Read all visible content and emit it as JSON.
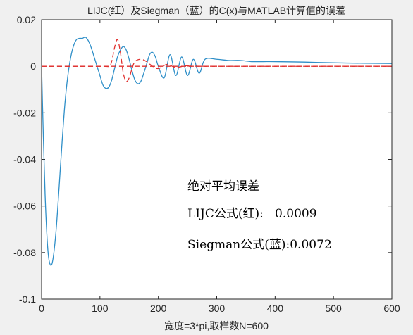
{
  "chart_data": {
    "type": "line",
    "title": "LIJC(红）及Siegman（蓝）的C(x)与MATLAB计算值的误差",
    "xlabel": "宽度=3*pi,取样数N=600",
    "ylabel": "",
    "xlim": [
      0,
      600
    ],
    "ylim": [
      -0.1,
      0.02
    ],
    "xticks": [
      0,
      100,
      200,
      300,
      400,
      500,
      600
    ],
    "yticks": [
      -0.1,
      -0.08,
      -0.06,
      -0.04,
      -0.02,
      0,
      0.02
    ],
    "xtick_labels": [
      "0",
      "100",
      "200",
      "300",
      "400",
      "500",
      "600"
    ],
    "ytick_labels": [
      "-0.1",
      "-0.08",
      "-0.06",
      "-0.04",
      "-0.02",
      "0",
      "0.02"
    ],
    "grid": false,
    "series": [
      {
        "name": "Siegman",
        "style": "solid",
        "color": "#2f8fc8",
        "x": [
          0,
          3,
          6,
          9,
          12,
          16,
          20,
          25,
          30,
          35,
          40,
          45,
          50,
          55,
          60,
          65,
          70,
          75,
          80,
          85,
          90,
          95,
          100,
          105,
          110,
          115,
          120,
          125,
          130,
          135,
          140,
          145,
          150,
          155,
          160,
          165,
          170,
          175,
          180,
          185,
          190,
          195,
          200,
          210,
          220,
          230,
          240,
          250,
          260,
          270,
          280,
          300,
          320,
          340,
          360,
          380,
          400,
          450,
          500,
          550,
          600
        ],
        "y": [
          0,
          -0.03,
          -0.055,
          -0.072,
          -0.082,
          -0.0855,
          -0.082,
          -0.07,
          -0.052,
          -0.033,
          -0.016,
          -0.004,
          0.004,
          0.009,
          0.0115,
          0.012,
          0.012,
          0.0125,
          0.011,
          0.008,
          0.004,
          0.0,
          -0.004,
          -0.008,
          -0.0095,
          -0.009,
          -0.006,
          -0.001,
          0.004,
          0.007,
          0.0085,
          0.007,
          0.003,
          -0.002,
          -0.006,
          -0.0075,
          -0.0065,
          -0.003,
          0.001,
          0.005,
          0.006,
          0.004,
          0.0,
          -0.005,
          0.005,
          -0.004,
          0.004,
          -0.004,
          0.003,
          -0.003,
          0.003,
          0.003,
          0.0025,
          0.0025,
          0.002,
          0.002,
          0.002,
          0.0018,
          0.0015,
          0.0013,
          0.0012
        ]
      },
      {
        "name": "LIJC",
        "style": "dashed",
        "color": "#e0312f",
        "x": [
          0,
          100,
          115,
          120,
          125,
          130,
          135,
          140,
          145,
          150,
          155,
          160,
          170,
          180,
          190,
          200,
          215,
          230,
          250,
          280,
          600
        ],
        "y": [
          0,
          0,
          0,
          0.002,
          0.008,
          0.0115,
          0.006,
          -0.003,
          -0.0065,
          -0.005,
          -0.001,
          0.002,
          0.003,
          0.002,
          0.0,
          -0.001,
          0.0008,
          -0.0005,
          0.0003,
          0.0,
          0
        ]
      },
      {
        "name": "zero-line",
        "style": "dashed",
        "color": "#e0312f",
        "x": [
          0,
          600
        ],
        "y": [
          0,
          0
        ]
      }
    ]
  },
  "annotation": {
    "heading": "绝对平均误差",
    "lijc_line": "LIJC公式(红):   0.0009",
    "siegman_line": "Siegman公式(蓝):0.0072"
  }
}
